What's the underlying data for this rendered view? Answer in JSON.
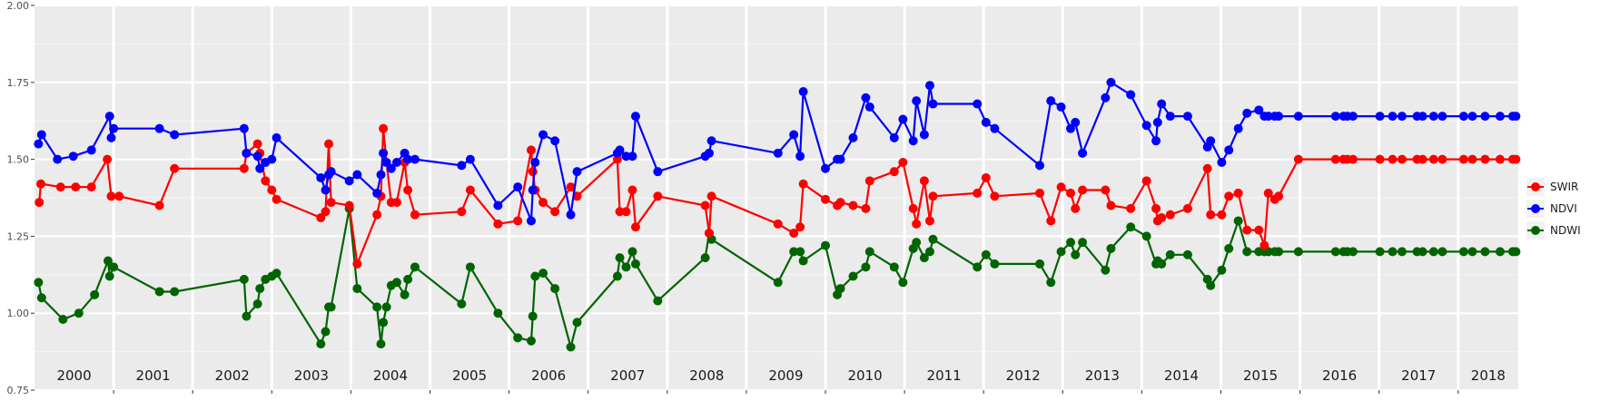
{
  "chart_data": {
    "type": "line",
    "title": "",
    "xlabel": "",
    "ylabel": "",
    "ylim": [
      0.75,
      2.0
    ],
    "xlim": [
      2000.0,
      2018.76
    ],
    "yticks": [
      "0.75",
      "1.00",
      "1.25",
      "1.50",
      "1.75",
      "2.00"
    ],
    "ytick_values": [
      0.75,
      1.0,
      1.25,
      1.5,
      1.75,
      2.0
    ],
    "year_bands": [
      "2000",
      "2001",
      "2002",
      "2003",
      "2004",
      "2005",
      "2006",
      "2007",
      "2008",
      "2009",
      "2010",
      "2011",
      "2012",
      "2013",
      "2014",
      "2015",
      "2016",
      "2017",
      "2018"
    ],
    "grid": true,
    "legend_position": "right",
    "panel_background": "#ebebeb",
    "series": [
      {
        "name": "SWIR",
        "color": "#ff0000",
        "x": [
          2000.06,
          2000.08,
          2000.33,
          2000.52,
          2000.72,
          2000.92,
          2000.97,
          2001.07,
          2001.58,
          2001.77,
          2002.65,
          2002.68,
          2002.82,
          2002.85,
          2002.92,
          2003.0,
          2003.06,
          2003.62,
          2003.68,
          2003.72,
          2003.75,
          2003.98,
          2004.08,
          2004.33,
          2004.38,
          2004.41,
          2004.45,
          2004.51,
          2004.58,
          2004.68,
          2004.72,
          2004.81,
          2005.4,
          2005.51,
          2005.86,
          2006.11,
          2006.28,
          2006.3,
          2006.33,
          2006.43,
          2006.58,
          2006.78,
          2006.86,
          2007.37,
          2007.4,
          2007.48,
          2007.56,
          2007.6,
          2007.88,
          2008.48,
          2008.53,
          2008.56,
          2009.4,
          2009.6,
          2009.68,
          2009.72,
          2010.0,
          2010.15,
          2010.19,
          2010.35,
          2010.51,
          2010.56,
          2010.87,
          2010.98,
          2011.11,
          2011.15,
          2011.25,
          2011.32,
          2011.36,
          2011.92,
          2012.03,
          2012.14,
          2012.71,
          2012.85,
          2012.98,
          2013.1,
          2013.16,
          2013.25,
          2013.54,
          2013.61,
          2013.86,
          2014.06,
          2014.18,
          2014.2,
          2014.25,
          2014.36,
          2014.58,
          2014.83,
          2014.87,
          2015.01,
          2015.1,
          2015.22,
          2015.33,
          2015.48,
          2015.55,
          2015.6,
          2015.68,
          2015.73,
          2015.98,
          2016.45,
          2016.55,
          2016.6,
          2016.67,
          2017.01,
          2017.17,
          2017.29,
          2017.48,
          2017.55,
          2017.69,
          2017.8,
          2018.07,
          2018.18,
          2018.34,
          2018.53,
          2018.69,
          2018.73
        ],
        "y": [
          1.36,
          1.42,
          1.41,
          1.41,
          1.41,
          1.5,
          1.38,
          1.38,
          1.35,
          1.47,
          1.47,
          1.52,
          1.55,
          1.52,
          1.43,
          1.4,
          1.37,
          1.31,
          1.33,
          1.55,
          1.36,
          1.35,
          1.16,
          1.32,
          1.38,
          1.6,
          1.49,
          1.36,
          1.36,
          1.49,
          1.4,
          1.32,
          1.33,
          1.4,
          1.29,
          1.3,
          1.53,
          1.46,
          1.4,
          1.36,
          1.33,
          1.41,
          1.38,
          1.5,
          1.33,
          1.33,
          1.4,
          1.28,
          1.38,
          1.35,
          1.26,
          1.38,
          1.29,
          1.26,
          1.28,
          1.42,
          1.37,
          1.35,
          1.36,
          1.35,
          1.34,
          1.43,
          1.46,
          1.49,
          1.34,
          1.29,
          1.43,
          1.3,
          1.38,
          1.39,
          1.44,
          1.38,
          1.39,
          1.3,
          1.41,
          1.39,
          1.34,
          1.4,
          1.4,
          1.35,
          1.34,
          1.43,
          1.34,
          1.3,
          1.31,
          1.32,
          1.34,
          1.47,
          1.32,
          1.32,
          1.38,
          1.39,
          1.27,
          1.27,
          1.22,
          1.39,
          1.37,
          1.38,
          1.5,
          1.5,
          1.5,
          1.5,
          1.5,
          1.5,
          1.5,
          1.5,
          1.5,
          1.5,
          1.5,
          1.5,
          1.5,
          1.5,
          1.5,
          1.5,
          1.5,
          1.5
        ]
      },
      {
        "name": "NDVI",
        "color": "#0000ff",
        "x": [
          2000.05,
          2000.09,
          2000.29,
          2000.49,
          2000.72,
          2000.95,
          2000.97,
          2001.0,
          2001.58,
          2001.77,
          2002.65,
          2002.68,
          2002.82,
          2002.85,
          2002.92,
          2003.0,
          2003.06,
          2003.62,
          2003.68,
          2003.72,
          2003.75,
          2003.98,
          2004.08,
          2004.33,
          2004.38,
          2004.41,
          2004.45,
          2004.51,
          2004.58,
          2004.68,
          2004.72,
          2004.81,
          2005.4,
          2005.51,
          2005.86,
          2006.11,
          2006.28,
          2006.3,
          2006.33,
          2006.43,
          2006.58,
          2006.78,
          2006.86,
          2007.37,
          2007.4,
          2007.48,
          2007.56,
          2007.6,
          2007.88,
          2008.48,
          2008.53,
          2008.56,
          2009.4,
          2009.6,
          2009.68,
          2009.72,
          2010.0,
          2010.15,
          2010.19,
          2010.35,
          2010.51,
          2010.56,
          2010.87,
          2010.98,
          2011.11,
          2011.15,
          2011.25,
          2011.32,
          2011.36,
          2011.92,
          2012.03,
          2012.14,
          2012.71,
          2012.85,
          2012.98,
          2013.1,
          2013.16,
          2013.25,
          2013.54,
          2013.61,
          2013.86,
          2014.06,
          2014.18,
          2014.2,
          2014.25,
          2014.36,
          2014.58,
          2014.83,
          2014.87,
          2015.01,
          2015.1,
          2015.22,
          2015.33,
          2015.48,
          2015.55,
          2015.6,
          2015.68,
          2015.73,
          2015.98,
          2016.45,
          2016.55,
          2016.6,
          2016.67,
          2017.01,
          2017.17,
          2017.29,
          2017.48,
          2017.55,
          2017.69,
          2017.8,
          2018.07,
          2018.18,
          2018.34,
          2018.53,
          2018.69,
          2018.73
        ],
        "y": [
          1.55,
          1.58,
          1.5,
          1.51,
          1.53,
          1.64,
          1.57,
          1.6,
          1.6,
          1.58,
          1.6,
          1.52,
          1.51,
          1.47,
          1.49,
          1.5,
          1.57,
          1.44,
          1.4,
          1.45,
          1.46,
          1.43,
          1.45,
          1.39,
          1.45,
          1.52,
          1.49,
          1.47,
          1.49,
          1.52,
          1.5,
          1.5,
          1.48,
          1.5,
          1.35,
          1.41,
          1.3,
          1.4,
          1.49,
          1.58,
          1.56,
          1.32,
          1.46,
          1.52,
          1.53,
          1.51,
          1.51,
          1.64,
          1.46,
          1.51,
          1.52,
          1.56,
          1.52,
          1.58,
          1.51,
          1.72,
          1.47,
          1.5,
          1.5,
          1.57,
          1.7,
          1.67,
          1.57,
          1.63,
          1.56,
          1.69,
          1.58,
          1.74,
          1.68,
          1.68,
          1.62,
          1.6,
          1.48,
          1.69,
          1.67,
          1.6,
          1.62,
          1.52,
          1.7,
          1.75,
          1.71,
          1.61,
          1.56,
          1.62,
          1.68,
          1.64,
          1.64,
          1.54,
          1.56,
          1.49,
          1.53,
          1.6,
          1.65,
          1.66,
          1.64,
          1.64,
          1.64,
          1.64,
          1.64,
          1.64,
          1.64,
          1.64,
          1.64,
          1.64,
          1.64,
          1.64,
          1.64,
          1.64,
          1.64,
          1.64,
          1.64,
          1.64,
          1.64,
          1.64,
          1.64,
          1.64
        ]
      },
      {
        "name": "NDWI",
        "color": "#006400",
        "x": [
          2000.05,
          2000.09,
          2000.36,
          2000.56,
          2000.76,
          2000.93,
          2000.95,
          2001.0,
          2001.58,
          2001.77,
          2002.65,
          2002.68,
          2002.82,
          2002.85,
          2002.92,
          2003.0,
          2003.06,
          2003.62,
          2003.68,
          2003.72,
          2003.75,
          2003.98,
          2004.08,
          2004.33,
          2004.38,
          2004.41,
          2004.45,
          2004.51,
          2004.58,
          2004.68,
          2004.72,
          2004.81,
          2005.4,
          2005.51,
          2005.86,
          2006.11,
          2006.28,
          2006.3,
          2006.33,
          2006.43,
          2006.58,
          2006.78,
          2006.86,
          2007.37,
          2007.4,
          2007.48,
          2007.56,
          2007.6,
          2007.88,
          2008.48,
          2008.53,
          2008.56,
          2009.4,
          2009.6,
          2009.68,
          2009.72,
          2010.0,
          2010.15,
          2010.19,
          2010.35,
          2010.51,
          2010.56,
          2010.87,
          2010.98,
          2011.11,
          2011.15,
          2011.25,
          2011.32,
          2011.36,
          2011.92,
          2012.03,
          2012.14,
          2012.71,
          2012.85,
          2012.98,
          2013.1,
          2013.16,
          2013.25,
          2013.54,
          2013.61,
          2013.86,
          2014.06,
          2014.18,
          2014.2,
          2014.25,
          2014.36,
          2014.58,
          2014.83,
          2014.87,
          2015.01,
          2015.1,
          2015.22,
          2015.33,
          2015.48,
          2015.55,
          2015.6,
          2015.68,
          2015.73,
          2015.98,
          2016.45,
          2016.55,
          2016.6,
          2016.67,
          2017.01,
          2017.17,
          2017.29,
          2017.48,
          2017.55,
          2017.69,
          2017.8,
          2018.07,
          2018.18,
          2018.34,
          2018.53,
          2018.69,
          2018.73
        ],
        "y": [
          1.1,
          1.05,
          0.98,
          1.0,
          1.06,
          1.17,
          1.12,
          1.15,
          1.07,
          1.07,
          1.11,
          0.99,
          1.03,
          1.08,
          1.11,
          1.12,
          1.13,
          0.9,
          0.94,
          1.02,
          1.02,
          1.34,
          1.08,
          1.02,
          0.9,
          0.97,
          1.02,
          1.09,
          1.1,
          1.06,
          1.11,
          1.15,
          1.03,
          1.15,
          1.0,
          0.92,
          0.91,
          0.99,
          1.12,
          1.13,
          1.08,
          0.89,
          0.97,
          1.12,
          1.18,
          1.15,
          1.2,
          1.16,
          1.04,
          1.18,
          1.26,
          1.24,
          1.1,
          1.2,
          1.2,
          1.17,
          1.22,
          1.06,
          1.08,
          1.12,
          1.15,
          1.2,
          1.15,
          1.1,
          1.21,
          1.23,
          1.18,
          1.2,
          1.24,
          1.15,
          1.19,
          1.16,
          1.16,
          1.1,
          1.2,
          1.23,
          1.19,
          1.23,
          1.14,
          1.21,
          1.28,
          1.25,
          1.16,
          1.17,
          1.16,
          1.19,
          1.19,
          1.11,
          1.09,
          1.14,
          1.21,
          1.3,
          1.2,
          1.2,
          1.2,
          1.2,
          1.2,
          1.2,
          1.2,
          1.2,
          1.2,
          1.2,
          1.2,
          1.2,
          1.2,
          1.2,
          1.2,
          1.2,
          1.2,
          1.2,
          1.2,
          1.2,
          1.2,
          1.2,
          1.2,
          1.2
        ]
      }
    ]
  }
}
